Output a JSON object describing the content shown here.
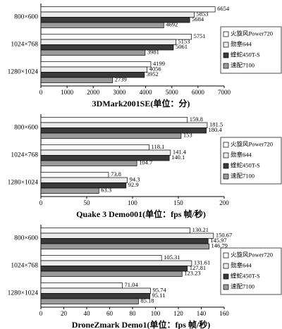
{
  "chart_data": [
    {
      "type": "bar",
      "orientation": "horizontal",
      "title": "3DMark2001SE(单位：分)",
      "categories": [
        "800×600",
        "1024×768",
        "1280×1024"
      ],
      "series": [
        {
          "name": "火旋风Power720",
          "color": "#ffffff",
          "values": [
            6654,
            5751,
            4199
          ]
        },
        {
          "name": "勋章644",
          "color": "#ececec",
          "values": [
            5853,
            5153,
            4056
          ]
        },
        {
          "name": "蝰蛇450T-S",
          "color": "#3a3a3a",
          "values": [
            5684,
            5061,
            3952
          ]
        },
        {
          "name": "速配7100",
          "color": "#9a9a9a",
          "values": [
            4692,
            3981,
            2739
          ]
        }
      ],
      "xlim": [
        0,
        7000
      ],
      "xticks": [
        0,
        1000,
        2000,
        3000,
        4000,
        5000,
        6000,
        7000
      ],
      "legend": "right"
    },
    {
      "type": "bar",
      "orientation": "horizontal",
      "title": "Quake 3 Demo001(单位：fps 帧/秒)",
      "categories": [
        "800×600",
        "1024×768",
        "1280×1024"
      ],
      "series": [
        {
          "name": "火旋风Power720",
          "color": "#ffffff",
          "values": [
            159.8,
            118.1,
            73.8
          ]
        },
        {
          "name": "勋章644",
          "color": "#ececec",
          "values": [
            181.5,
            141.4,
            94.3
          ]
        },
        {
          "name": "蝰蛇450T-S",
          "color": "#3a3a3a",
          "values": [
            180.4,
            140.1,
            92.9
          ]
        },
        {
          "name": "速配7100",
          "color": "#9a9a9a",
          "values": [
            153,
            104.7,
            63.3
          ]
        }
      ],
      "xlim": [
        0,
        200
      ],
      "xticks": [
        0,
        50,
        100,
        150,
        200
      ],
      "legend": "right"
    },
    {
      "type": "bar",
      "orientation": "horizontal",
      "title": "DroneZmark Demo1(单位：fps 帧/秒)",
      "categories": [
        "800×600",
        "1024×768",
        "1280×1024"
      ],
      "series": [
        {
          "name": "火旋风Power720",
          "color": "#ffffff",
          "values": [
            130.21,
            105.31,
            71.04
          ]
        },
        {
          "name": "勋章644",
          "color": "#ececec",
          "values": [
            150.67,
            131.61,
            95.74
          ]
        },
        {
          "name": "蝰蛇450T-S",
          "color": "#3a3a3a",
          "values": [
            145.97,
            127.81,
            95.11
          ]
        },
        {
          "name": "速配7100",
          "color": "#9a9a9a",
          "values": [
            146.79,
            123.23,
            85.18
          ]
        }
      ],
      "xlim": [
        0,
        160
      ],
      "xticks": [
        0,
        20,
        40,
        60,
        80,
        100,
        120,
        140,
        160
      ],
      "legend": "right"
    }
  ]
}
